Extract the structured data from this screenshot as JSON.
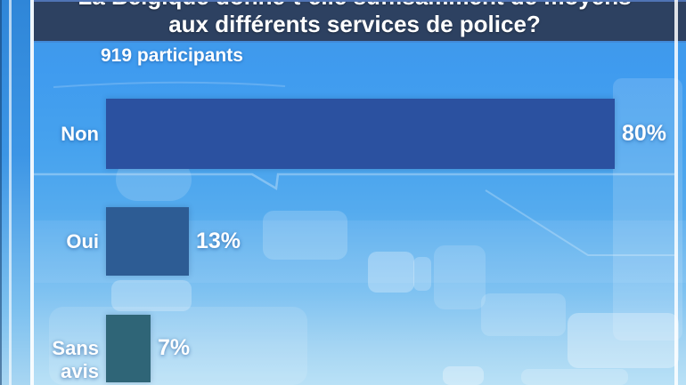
{
  "poll": {
    "title_line1": "La Belgique donne-t-elle suffisamment de moyens",
    "title_line2": "aux différents services de police?",
    "participants": "919 participants"
  },
  "chart_data": {
    "type": "bar",
    "orientation": "horizontal",
    "title": "La Belgique donne-t-elle suffisamment de moyens aux différents services de police?",
    "subtitle": "919 participants",
    "categories": [
      "Non",
      "Oui",
      "Sans avis"
    ],
    "values": [
      80,
      13,
      7
    ],
    "value_labels": [
      "80%",
      "13%",
      "7%"
    ],
    "bar_colors": [
      "#2b51a0",
      "#2d5c94",
      "#2f6577"
    ],
    "xlim": [
      0,
      100
    ],
    "grid": false,
    "legend": false
  },
  "colors": {
    "title_bar_bg": "#2d4161",
    "background_top": "#3f9bef",
    "background_bottom": "#b9e1f6",
    "text": "#ffffff"
  }
}
